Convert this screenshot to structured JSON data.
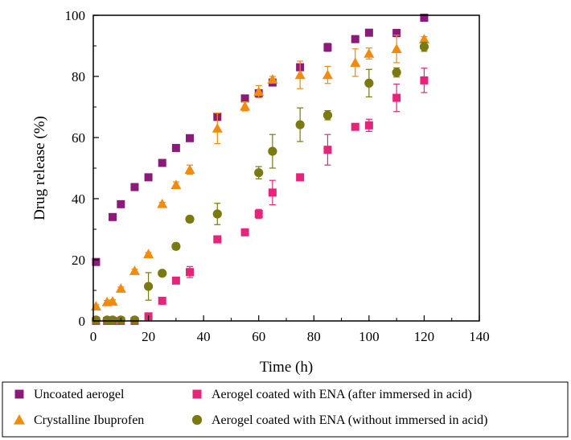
{
  "chart_data": {
    "type": "scatter",
    "xlabel": "Time (h)",
    "ylabel": "Drug release (%)",
    "xlim": [
      0,
      140
    ],
    "ylim": [
      0,
      100
    ],
    "x_ticks": [
      "0",
      "20",
      "40",
      "60",
      "80",
      "100",
      "120",
      "140"
    ],
    "y_ticks": [
      "0",
      "20",
      "40",
      "60",
      "80",
      "100"
    ],
    "grid": false,
    "legend_position": "bottom",
    "series": [
      {
        "name": "Uncoated aerogel",
        "marker": "square",
        "color": "#8B1A7A",
        "points": [
          {
            "x": 1,
            "y": 19.3,
            "err": 0.5
          },
          {
            "x": 7,
            "y": 34,
            "err": 0.5
          },
          {
            "x": 10,
            "y": 38.2,
            "err": 0.5
          },
          {
            "x": 15,
            "y": 43.8,
            "err": 0.5
          },
          {
            "x": 20,
            "y": 47,
            "err": 0.5
          },
          {
            "x": 25,
            "y": 51.7,
            "err": 0.5
          },
          {
            "x": 30,
            "y": 56.6,
            "err": 0.5
          },
          {
            "x": 35,
            "y": 59.8,
            "err": 0.5
          },
          {
            "x": 45,
            "y": 66.8,
            "err": 1.2
          },
          {
            "x": 55,
            "y": 72.8,
            "err": 0.5
          },
          {
            "x": 60,
            "y": 74.5,
            "err": 0.5
          },
          {
            "x": 65,
            "y": 78,
            "err": 0.8
          },
          {
            "x": 75,
            "y": 83,
            "err": 1
          },
          {
            "x": 85,
            "y": 89.5,
            "err": 1.3
          },
          {
            "x": 95,
            "y": 92.2,
            "err": 0.5
          },
          {
            "x": 100,
            "y": 94.3,
            "err": 0.5
          },
          {
            "x": 110,
            "y": 94.2,
            "err": 1.2
          },
          {
            "x": 120,
            "y": 99.2,
            "err": 0.5
          }
        ]
      },
      {
        "name": "Crystalline Ibuprofen",
        "marker": "triangle",
        "color": "#F28A0C",
        "points": [
          {
            "x": 1,
            "y": 4.8,
            "err": 0.5
          },
          {
            "x": 5,
            "y": 6.2,
            "err": 0.5
          },
          {
            "x": 7,
            "y": 6.4,
            "err": 0.5
          },
          {
            "x": 10,
            "y": 10.6,
            "err": 0.5
          },
          {
            "x": 15,
            "y": 16.4,
            "err": 0.5
          },
          {
            "x": 20,
            "y": 21.9,
            "err": 0.5
          },
          {
            "x": 25,
            "y": 38.3,
            "err": 0.5
          },
          {
            "x": 30,
            "y": 44.5,
            "err": 1
          },
          {
            "x": 35,
            "y": 49.5,
            "err": 1.5
          },
          {
            "x": 45,
            "y": 63,
            "err": 5
          },
          {
            "x": 55,
            "y": 70.2,
            "err": 1.5
          },
          {
            "x": 60,
            "y": 75,
            "err": 2
          },
          {
            "x": 65,
            "y": 79,
            "err": 1
          },
          {
            "x": 75,
            "y": 80.5,
            "err": 4.5
          },
          {
            "x": 85,
            "y": 80.5,
            "err": 2.8
          },
          {
            "x": 95,
            "y": 84.5,
            "err": 4.5
          },
          {
            "x": 100,
            "y": 87.5,
            "err": 1.8
          },
          {
            "x": 110,
            "y": 89,
            "err": 4.5
          },
          {
            "x": 120,
            "y": 92.2,
            "err": 0.8
          }
        ]
      },
      {
        "name": "Aerogel coated with ENA (after immersed in acid)",
        "marker": "square",
        "color": "#E8247A",
        "points": [
          {
            "x": 1,
            "y": 0,
            "err": 0.3
          },
          {
            "x": 5,
            "y": 0,
            "err": 0.3
          },
          {
            "x": 7,
            "y": 0,
            "err": 0.3
          },
          {
            "x": 10,
            "y": 0,
            "err": 0.3
          },
          {
            "x": 15,
            "y": 0,
            "err": 0.3
          },
          {
            "x": 20,
            "y": 1.5,
            "err": 0.5
          },
          {
            "x": 25,
            "y": 6.6,
            "err": 0.5
          },
          {
            "x": 30,
            "y": 13.2,
            "err": 0.5
          },
          {
            "x": 35,
            "y": 16,
            "err": 1.8
          },
          {
            "x": 45,
            "y": 26.7,
            "err": 0.5
          },
          {
            "x": 55,
            "y": 29,
            "err": 0.5
          },
          {
            "x": 60,
            "y": 35,
            "err": 1.5
          },
          {
            "x": 65,
            "y": 42,
            "err": 4
          },
          {
            "x": 75,
            "y": 47,
            "err": 0.5
          },
          {
            "x": 85,
            "y": 56,
            "err": 5
          },
          {
            "x": 95,
            "y": 63.5,
            "err": 0.5
          },
          {
            "x": 100,
            "y": 64,
            "err": 2
          },
          {
            "x": 110,
            "y": 73,
            "err": 4.5
          },
          {
            "x": 120,
            "y": 78.7,
            "err": 4
          }
        ]
      },
      {
        "name": "Aerogel coated with ENA (without immersed in acid)",
        "marker": "circle",
        "color": "#7A7A10",
        "points": [
          {
            "x": 1,
            "y": 0.3,
            "err": 0.3
          },
          {
            "x": 5,
            "y": 0.3,
            "err": 0.3
          },
          {
            "x": 7,
            "y": 0.3,
            "err": 0.3
          },
          {
            "x": 10,
            "y": 0.3,
            "err": 0.3
          },
          {
            "x": 15,
            "y": 0.3,
            "err": 0.3
          },
          {
            "x": 20,
            "y": 11.3,
            "err": 4.5
          },
          {
            "x": 25,
            "y": 15.6,
            "err": 0.5
          },
          {
            "x": 30,
            "y": 24.4,
            "err": 1
          },
          {
            "x": 35,
            "y": 33.3,
            "err": 1
          },
          {
            "x": 45,
            "y": 35,
            "err": 3.5
          },
          {
            "x": 60,
            "y": 48.5,
            "err": 2
          },
          {
            "x": 65,
            "y": 55.5,
            "err": 5.5
          },
          {
            "x": 75,
            "y": 64.2,
            "err": 5.5
          },
          {
            "x": 85,
            "y": 67.3,
            "err": 1.5
          },
          {
            "x": 100,
            "y": 77.8,
            "err": 4.5
          },
          {
            "x": 110,
            "y": 81.3,
            "err": 1.5
          },
          {
            "x": 120,
            "y": 89.7,
            "err": 1.5
          }
        ]
      }
    ]
  }
}
